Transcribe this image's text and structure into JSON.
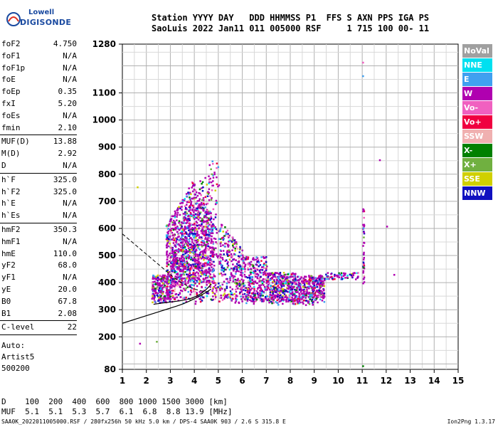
{
  "logo": {
    "line1": "Lowell",
    "line2": "DIGISONDE"
  },
  "header": {
    "line1": "Station YYYY DAY   DDD HHMMSS P1  FFS S AXN PPS IGA PS",
    "line2": "SaoLuis 2022 Jan11 011 005000 RSF     1 715 100 00- 11"
  },
  "params": {
    "group1": [
      {
        "label": "foF2",
        "value": "4.750"
      },
      {
        "label": "foF1",
        "value": "N/A"
      },
      {
        "label": "foF1p",
        "value": "N/A"
      },
      {
        "label": "foE",
        "value": "N/A"
      },
      {
        "label": "foEp",
        "value": "0.35"
      },
      {
        "label": "fxI",
        "value": "5.20"
      },
      {
        "label": "foEs",
        "value": "N/A"
      },
      {
        "label": "fmin",
        "value": "2.10"
      }
    ],
    "group2": [
      {
        "label": "MUF(D)",
        "value": "13.88"
      },
      {
        "label": "M(D)",
        "value": "2.92"
      },
      {
        "label": "D",
        "value": "N/A"
      }
    ],
    "group3": [
      {
        "label": "h`F",
        "value": "325.0"
      },
      {
        "label": "h`F2",
        "value": "325.0"
      },
      {
        "label": "h`E",
        "value": "N/A"
      },
      {
        "label": "h`Es",
        "value": "N/A"
      }
    ],
    "group4": [
      {
        "label": "hmF2",
        "value": "350.3"
      },
      {
        "label": "hmF1",
        "value": "N/A"
      },
      {
        "label": "hmE",
        "value": "110.0"
      },
      {
        "label": "yF2",
        "value": "68.0"
      },
      {
        "label": "yF1",
        "value": "N/A"
      },
      {
        "label": "yE",
        "value": "20.0"
      },
      {
        "label": "B0",
        "value": "67.8"
      },
      {
        "label": "B1",
        "value": "2.08"
      }
    ],
    "group5": [
      {
        "label": "C-level",
        "value": "22"
      }
    ]
  },
  "auto": {
    "line1": "Auto:",
    "line2": "Artist5",
    "line3": "500200"
  },
  "legend": [
    {
      "label": "NoVal",
      "color": "#a0a0a0"
    },
    {
      "label": "NNE",
      "color": "#00e0f0"
    },
    {
      "label": "E",
      "color": "#40a0f0"
    },
    {
      "label": "W",
      "color": "#b000b0"
    },
    {
      "label": "Vo-",
      "color": "#f060c0"
    },
    {
      "label": "Vo+",
      "color": "#f00040"
    },
    {
      "label": "SSW",
      "color": "#f0b0b0"
    },
    {
      "label": "X-",
      "color": "#008000"
    },
    {
      "label": "X+",
      "color": "#70b040"
    },
    {
      "label": "SSE",
      "color": "#d0d000"
    },
    {
      "label": "NNW",
      "color": "#1010c0"
    }
  ],
  "chart_data": {
    "type": "scatter",
    "x_ticks": [
      "1",
      "2",
      "3",
      "4",
      "5",
      "6",
      "7",
      "8",
      "9",
      "10",
      "11",
      "12",
      "13",
      "14",
      "15"
    ],
    "y_ticks": [
      "80",
      "200",
      "300",
      "400",
      "500",
      "600",
      "700",
      "800",
      "900",
      "1000",
      "1100",
      "1280"
    ],
    "xlim": [
      1,
      15
    ],
    "ylim": [
      80,
      1280
    ],
    "xlabel": "",
    "ylabel": "",
    "grid": true,
    "legend_placement": "right"
  },
  "footer": {
    "line1": "D    100  200  400  600  800 1000 1500 3000 [km]",
    "line2": "MUF  5.1  5.1  5.3  5.7  6.1  6.8  8.8 13.9 [MHz]",
    "file": "SAA0K_2022011005000.RSF / 280fx256h 50 kHz 5.0 km / DPS-4 SAA0K 903 / 2.6 S 315.8 E",
    "version": "Ion2Png 1.3.17"
  }
}
